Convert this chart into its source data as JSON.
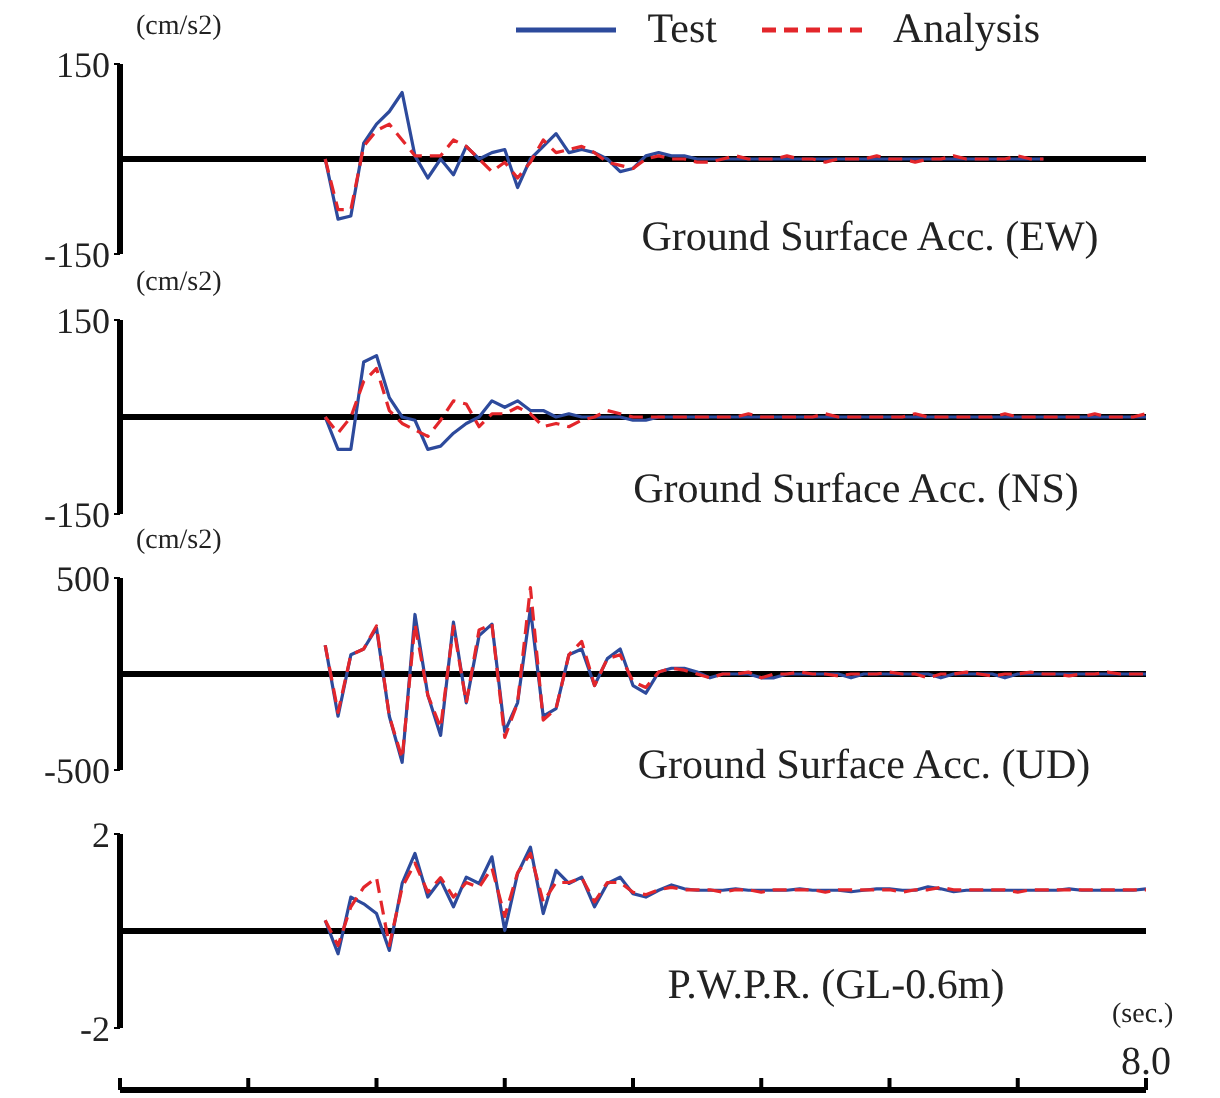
{
  "chart_data": [
    {
      "type": "line",
      "title": "Ground Surface Acc. (EW)",
      "ylabel": "(cm/s2)",
      "ylim": [
        -150,
        150
      ],
      "yticks": [
        -150,
        150
      ],
      "tick_labels": "y",
      "legend": "top right",
      "grid": false,
      "ref_lines": [
        {
          "axis": "y",
          "value": 0,
          "color": "#000000"
        }
      ],
      "categories": [
        null,
        null,
        null,
        null,
        null,
        null,
        null,
        null,
        null,
        null,
        null,
        null,
        null,
        null,
        null,
        null,
        null,
        null,
        null,
        null,
        null,
        null,
        null,
        null,
        null,
        null,
        null,
        null,
        null,
        null,
        null,
        null,
        null,
        null,
        null,
        null,
        null,
        null,
        null,
        null,
        null,
        null,
        null,
        null,
        null,
        null,
        null,
        null,
        null,
        null,
        null,
        null,
        null,
        null,
        null,
        null,
        null,
        null,
        null,
        null,
        null,
        null,
        null,
        null,
        null,
        null,
        null,
        null,
        null,
        null,
        null,
        null,
        null,
        null,
        null,
        null,
        null,
        null,
        null,
        null,
        null
      ],
      "series": [
        {
          "name": "Test",
          "color": "#2d4a9c",
          "line_style": "solid",
          "values": [
            null,
            null,
            null,
            null,
            null,
            null,
            null,
            null,
            null,
            null,
            null,
            null,
            null,
            null,
            null,
            null,
            0,
            -95,
            -90,
            25,
            55,
            75,
            105,
            5,
            -30,
            0,
            -25,
            20,
            0,
            10,
            15,
            -45,
            0,
            20,
            40,
            10,
            15,
            10,
            0,
            -20,
            -15,
            5,
            10,
            5,
            5,
            0,
            0,
            0,
            0,
            0,
            0,
            0,
            0,
            0,
            0,
            0,
            0,
            0,
            0,
            0,
            0,
            0,
            0,
            0,
            0,
            0,
            0,
            0,
            0,
            0,
            0,
            0,
            0,
            null,
            null,
            null,
            null,
            null,
            null,
            null,
            null
          ]
        },
        {
          "name": "Analysis",
          "color": "#e3262b",
          "line_style": "dashed",
          "values": [
            null,
            null,
            null,
            null,
            null,
            null,
            null,
            null,
            null,
            null,
            null,
            null,
            null,
            null,
            null,
            null,
            0,
            -80,
            -80,
            20,
            45,
            55,
            30,
            5,
            5,
            5,
            30,
            20,
            0,
            -20,
            -5,
            -30,
            -5,
            30,
            10,
            15,
            20,
            10,
            -5,
            -10,
            -15,
            0,
            5,
            0,
            0,
            -5,
            -5,
            0,
            5,
            0,
            0,
            0,
            5,
            0,
            0,
            -5,
            0,
            0,
            0,
            5,
            0,
            0,
            -5,
            0,
            0,
            5,
            0,
            0,
            0,
            0,
            5,
            0,
            0,
            null,
            null,
            null,
            null,
            null,
            null,
            null,
            null
          ]
        }
      ]
    },
    {
      "type": "line",
      "title": "Ground Surface Acc. (NS)",
      "ylabel": "(cm/s2)",
      "ylim": [
        -150,
        150
      ],
      "yticks": [
        -150,
        150
      ],
      "tick_labels": "y",
      "grid": false,
      "ref_lines": [
        {
          "axis": "y",
          "value": 0,
          "color": "#000000"
        }
      ],
      "categories": [
        null,
        null,
        null,
        null,
        null,
        null,
        null,
        null,
        null,
        null,
        null,
        null,
        null,
        null,
        null,
        null,
        null,
        null,
        null,
        null,
        null,
        null,
        null,
        null,
        null,
        null,
        null,
        null,
        null,
        null,
        null,
        null,
        null,
        null,
        null,
        null,
        null,
        null,
        null,
        null,
        null,
        null,
        null,
        null,
        null,
        null,
        null,
        null,
        null,
        null,
        null,
        null,
        null,
        null,
        null,
        null,
        null,
        null,
        null,
        null,
        null,
        null,
        null,
        null,
        null,
        null,
        null,
        null,
        null,
        null,
        null,
        null,
        null,
        null,
        null,
        null,
        null,
        null,
        null,
        null,
        null
      ],
      "series": [
        {
          "color": "#2d4a9c",
          "line_style": "solid",
          "values": [
            null,
            null,
            null,
            null,
            null,
            null,
            null,
            null,
            null,
            null,
            null,
            null,
            null,
            null,
            null,
            null,
            0,
            -50,
            -50,
            85,
            95,
            30,
            0,
            -5,
            -50,
            -45,
            -25,
            -10,
            0,
            25,
            15,
            25,
            10,
            10,
            0,
            5,
            0,
            0,
            0,
            0,
            -5,
            -5,
            0,
            0,
            0,
            0,
            0,
            0,
            0,
            0,
            0,
            0,
            0,
            0,
            0,
            0,
            0,
            0,
            0,
            0,
            0,
            0,
            0,
            0,
            0,
            0,
            0,
            0,
            0,
            0,
            0,
            0,
            0,
            0,
            0,
            0,
            0,
            0,
            0,
            0,
            0
          ]
        },
        {
          "color": "#e3262b",
          "line_style": "dashed",
          "values": [
            null,
            null,
            null,
            null,
            null,
            null,
            null,
            null,
            null,
            null,
            null,
            null,
            null,
            null,
            null,
            null,
            0,
            -25,
            0,
            55,
            75,
            10,
            -10,
            -20,
            -30,
            -5,
            25,
            20,
            -15,
            5,
            5,
            15,
            5,
            -15,
            -10,
            -15,
            -5,
            0,
            10,
            5,
            0,
            0,
            0,
            0,
            0,
            0,
            0,
            0,
            0,
            5,
            0,
            0,
            0,
            0,
            0,
            5,
            0,
            0,
            0,
            0,
            0,
            0,
            5,
            0,
            0,
            0,
            0,
            0,
            0,
            5,
            0,
            0,
            0,
            0,
            0,
            0,
            5,
            0,
            0,
            0,
            5
          ]
        }
      ]
    },
    {
      "type": "line",
      "title": "Ground Surface Acc. (UD)",
      "ylabel": "(cm/s2)",
      "ylim": [
        -500,
        500
      ],
      "yticks": [
        -500,
        500
      ],
      "tick_labels": "y",
      "grid": false,
      "ref_lines": [
        {
          "axis": "y",
          "value": 0,
          "color": "#000000"
        }
      ],
      "categories": [
        null,
        null,
        null,
        null,
        null,
        null,
        null,
        null,
        null,
        null,
        null,
        null,
        null,
        null,
        null,
        null,
        null,
        null,
        null,
        null,
        null,
        null,
        null,
        null,
        null,
        null,
        null,
        null,
        null,
        null,
        null,
        null,
        null,
        null,
        null,
        null,
        null,
        null,
        null,
        null,
        null,
        null,
        null,
        null,
        null,
        null,
        null,
        null,
        null,
        null,
        null,
        null,
        null,
        null,
        null,
        null,
        null,
        null,
        null,
        null,
        null,
        null,
        null,
        null,
        null,
        null,
        null,
        null,
        null,
        null,
        null,
        null,
        null,
        null,
        null,
        null,
        null,
        null,
        null,
        null,
        null
      ],
      "series": [
        {
          "color": "#2d4a9c",
          "line_style": "solid",
          "values": [
            null,
            null,
            null,
            null,
            null,
            null,
            null,
            null,
            null,
            null,
            null,
            null,
            null,
            null,
            null,
            null,
            150,
            -220,
            100,
            130,
            240,
            -220,
            -460,
            310,
            -110,
            -320,
            270,
            -150,
            200,
            260,
            -300,
            -150,
            340,
            -220,
            -180,
            100,
            130,
            -60,
            80,
            130,
            -60,
            -100,
            10,
            30,
            30,
            10,
            -20,
            0,
            0,
            0,
            -20,
            -20,
            0,
            0,
            0,
            0,
            0,
            -20,
            0,
            0,
            0,
            0,
            0,
            0,
            -20,
            0,
            0,
            0,
            0,
            -20,
            0,
            0,
            0,
            0,
            0,
            0,
            0,
            0,
            0,
            0,
            0
          ]
        },
        {
          "color": "#e3262b",
          "line_style": "dashed",
          "values": [
            null,
            null,
            null,
            null,
            null,
            null,
            null,
            null,
            null,
            null,
            null,
            null,
            null,
            null,
            null,
            null,
            150,
            -200,
            100,
            130,
            250,
            -220,
            -440,
            260,
            -110,
            -280,
            250,
            -150,
            230,
            260,
            -330,
            -150,
            450,
            -240,
            -180,
            100,
            170,
            -60,
            80,
            100,
            -40,
            -70,
            10,
            30,
            20,
            0,
            -20,
            0,
            0,
            10,
            -20,
            0,
            0,
            10,
            0,
            0,
            -10,
            0,
            0,
            0,
            10,
            0,
            0,
            -20,
            0,
            0,
            10,
            0,
            -10,
            0,
            0,
            10,
            0,
            0,
            -10,
            0,
            0,
            10,
            0,
            0,
            0
          ]
        }
      ]
    },
    {
      "type": "line",
      "title": "P.W.P.R. (GL-0.6m)",
      "xlabel": "(sec.)",
      "ylim": [
        -2,
        2
      ],
      "yticks": [
        -2,
        2
      ],
      "grid": false,
      "ref_lines": [
        {
          "axis": "y",
          "value": 0,
          "color": "#000000"
        }
      ],
      "categories": [
        null,
        null,
        null,
        null,
        null,
        null,
        null,
        null,
        null,
        null,
        null,
        null,
        null,
        null,
        null,
        null,
        null,
        null,
        null,
        null,
        null,
        null,
        null,
        null,
        null,
        null,
        null,
        null,
        null,
        null,
        null,
        null,
        null,
        null,
        null,
        null,
        null,
        null,
        null,
        null,
        null,
        null,
        null,
        null,
        null,
        null,
        null,
        null,
        null,
        null,
        null,
        null,
        null,
        null,
        null,
        null,
        null,
        null,
        null,
        null,
        null,
        null,
        null,
        null,
        null,
        null,
        null,
        null,
        null,
        null,
        null,
        null,
        null,
        null,
        null,
        null,
        null,
        null,
        null,
        null,
        "8.0"
      ],
      "series": [
        {
          "color": "#2d4a9c",
          "line_style": "solid",
          "values": [
            null,
            null,
            null,
            null,
            null,
            null,
            null,
            null,
            null,
            null,
            null,
            null,
            null,
            null,
            null,
            null,
            0.22,
            -0.47,
            0.7,
            0.56,
            0.36,
            -0.4,
            0.98,
            1.6,
            0.7,
            1.05,
            0.5,
            1.11,
            0.98,
            1.53,
            0.01,
            1.18,
            1.73,
            0.36,
            1.25,
            0.98,
            1.11,
            0.5,
            0.98,
            1.11,
            0.77,
            0.7,
            0.84,
            0.95,
            0.87,
            0.84,
            0.84,
            0.84,
            0.87,
            0.84,
            0.84,
            0.84,
            0.84,
            0.87,
            0.84,
            0.84,
            0.84,
            0.81,
            0.84,
            0.87,
            0.87,
            0.84,
            0.84,
            0.91,
            0.87,
            0.81,
            0.84,
            0.84,
            0.84,
            0.84,
            0.84,
            0.84,
            0.84,
            0.84,
            0.87,
            0.84,
            0.84,
            0.84,
            0.84,
            0.84,
            0.87
          ]
        },
        {
          "color": "#e3262b",
          "line_style": "dashed",
          "values": [
            null,
            null,
            null,
            null,
            null,
            null,
            null,
            null,
            null,
            null,
            null,
            null,
            null,
            null,
            null,
            null,
            0.22,
            -0.3,
            0.5,
            0.9,
            1.1,
            -0.3,
            0.9,
            1.4,
            0.8,
            1.1,
            0.7,
            1.0,
            0.9,
            1.3,
            0.3,
            1.2,
            1.6,
            0.6,
            1.0,
            1.0,
            1.1,
            0.6,
            1.0,
            1.0,
            0.8,
            0.75,
            0.85,
            0.9,
            0.85,
            0.85,
            0.85,
            0.8,
            0.85,
            0.85,
            0.8,
            0.85,
            0.85,
            0.85,
            0.85,
            0.8,
            0.85,
            0.85,
            0.85,
            0.85,
            0.85,
            0.8,
            0.85,
            0.85,
            0.9,
            0.85,
            0.85,
            0.85,
            0.85,
            0.85,
            0.8,
            0.85,
            0.85,
            0.85,
            0.85,
            0.85,
            0.85,
            0.85,
            0.85,
            0.85,
            0.85
          ]
        }
      ]
    }
  ]
}
